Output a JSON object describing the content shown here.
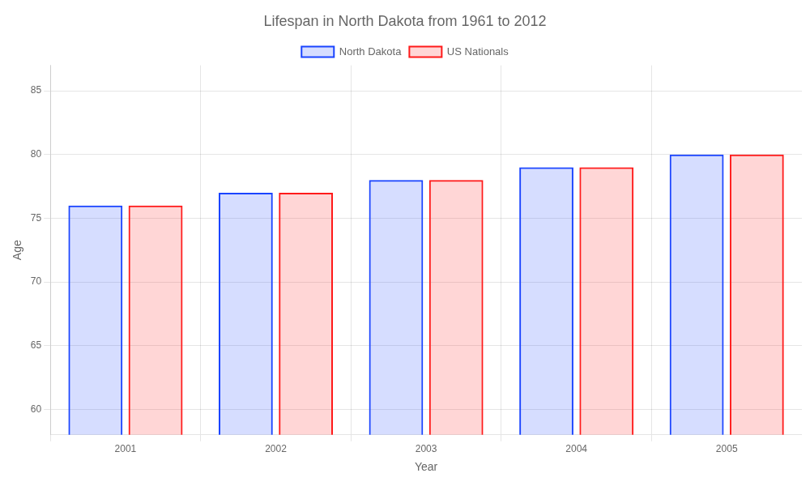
{
  "chart_data": {
    "type": "bar",
    "title": "Lifespan in North Dakota from 1961 to 2012",
    "xlabel": "Year",
    "ylabel": "Age",
    "categories": [
      "2001",
      "2002",
      "2003",
      "2004",
      "2005"
    ],
    "series": [
      {
        "name": "North Dakota",
        "color": "#1a44ff",
        "values": [
          76,
          77,
          78,
          79,
          80
        ]
      },
      {
        "name": "US Nationals",
        "color": "#ff1a1a",
        "values": [
          76,
          77,
          78,
          79,
          80
        ]
      }
    ],
    "ylim": [
      58,
      87
    ],
    "yticks": [
      60,
      65,
      70,
      75,
      80,
      85
    ],
    "grid": true,
    "legend": "top"
  }
}
